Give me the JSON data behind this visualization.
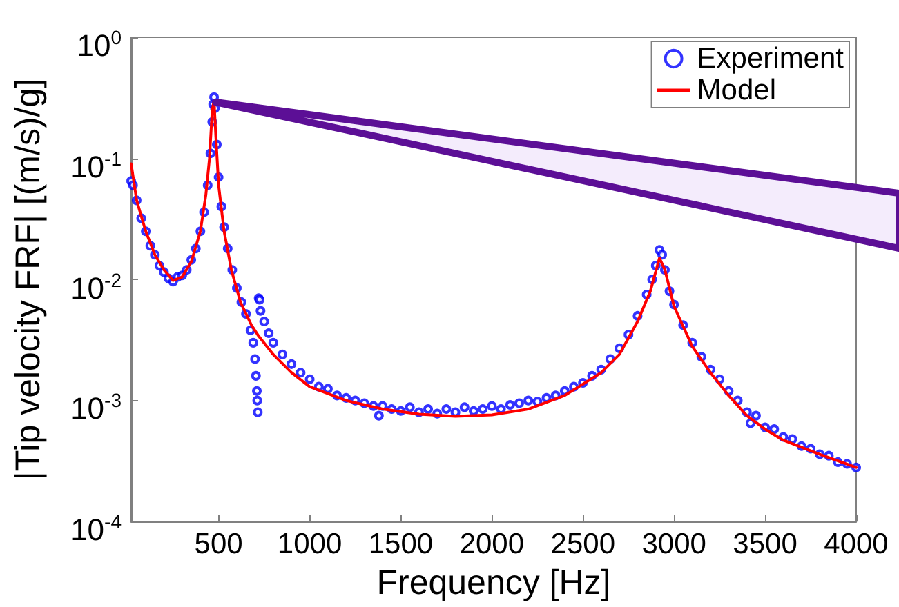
{
  "chart_data": {
    "type": "scatter",
    "xlabel": "Frequency [Hz]",
    "ylabel": "|Tip velocity FRF| [(m/s)/g]",
    "log": "y",
    "grid": false,
    "legend": "top right",
    "xlim": [
      20,
      4000
    ],
    "xticks": [
      500,
      1000,
      1500,
      2000,
      2500,
      3000,
      3500,
      4000
    ],
    "ylim": [
      0.0001,
      1
    ],
    "yticks": [
      {
        "value": 0.0001,
        "label": "10$^{-4}$"
      },
      {
        "value": 0.001,
        "label": "10$^{-3}$"
      },
      {
        "value": 0.01,
        "label": "10$^{-2}$"
      },
      {
        "value": 0.1,
        "label": "10$^{-1}$"
      },
      {
        "value": 1,
        "label": "10$^{0}$"
      }
    ],
    "series": [
      {
        "name": "Experiment",
        "type": "scatter",
        "marker": "circle",
        "color": "#0000ff",
        "x": [
          20,
          30,
          50,
          75,
          100,
          125,
          150,
          175,
          200,
          225,
          250,
          275,
          300,
          325,
          350,
          375,
          400,
          420,
          440,
          455,
          465,
          470,
          475,
          480,
          490,
          500,
          515,
          530,
          550,
          575,
          600,
          625,
          650,
          675,
          690,
          700,
          705,
          710,
          712,
          715,
          720,
          725,
          730,
          750,
          775,
          800,
          850,
          900,
          950,
          1000,
          1050,
          1100,
          1150,
          1200,
          1250,
          1300,
          1350,
          1380,
          1400,
          1450,
          1500,
          1550,
          1600,
          1650,
          1700,
          1750,
          1800,
          1850,
          1900,
          1950,
          2000,
          2050,
          2100,
          2150,
          2200,
          2250,
          2300,
          2350,
          2400,
          2450,
          2500,
          2550,
          2600,
          2650,
          2700,
          2750,
          2800,
          2850,
          2880,
          2900,
          2920,
          2935,
          2950,
          2975,
          3000,
          3050,
          3100,
          3150,
          3200,
          3250,
          3300,
          3350,
          3400,
          3420,
          3450,
          3500,
          3550,
          3600,
          3650,
          3700,
          3750,
          3800,
          3850,
          3900,
          3950,
          4000
        ],
        "values": [
          0.065,
          0.06,
          0.045,
          0.032,
          0.025,
          0.019,
          0.016,
          0.013,
          0.0115,
          0.0102,
          0.0096,
          0.0105,
          0.0108,
          0.012,
          0.0145,
          0.018,
          0.025,
          0.036,
          0.06,
          0.11,
          0.2,
          0.28,
          0.32,
          0.26,
          0.13,
          0.07,
          0.04,
          0.027,
          0.018,
          0.012,
          0.0085,
          0.0065,
          0.0052,
          0.0038,
          0.003,
          0.0022,
          0.0016,
          0.0012,
          0.001,
          0.0008,
          0.007,
          0.0068,
          0.0055,
          0.0045,
          0.0036,
          0.003,
          0.0024,
          0.002,
          0.0017,
          0.0015,
          0.0013,
          0.00125,
          0.0011,
          0.00105,
          0.001,
          0.00095,
          0.0009,
          0.00075,
          0.0009,
          0.00085,
          0.00082,
          0.00088,
          0.0008,
          0.00085,
          0.00078,
          0.00085,
          0.0008,
          0.00088,
          0.00082,
          0.00085,
          0.0009,
          0.00085,
          0.00092,
          0.00095,
          0.001,
          0.00098,
          0.00105,
          0.0011,
          0.0012,
          0.0013,
          0.0014,
          0.0016,
          0.0018,
          0.0022,
          0.0027,
          0.0035,
          0.005,
          0.0075,
          0.01,
          0.013,
          0.0175,
          0.016,
          0.012,
          0.008,
          0.0062,
          0.0042,
          0.003,
          0.0023,
          0.0018,
          0.0015,
          0.0012,
          0.001,
          0.0008,
          0.00065,
          0.00075,
          0.0006,
          0.00058,
          0.0005,
          0.00048,
          0.00042,
          0.0004,
          0.00036,
          0.00035,
          0.00031,
          0.0003,
          0.00028
        ]
      },
      {
        "name": "Model",
        "type": "line",
        "marker": "none",
        "color": "#ff0000",
        "x": [
          20,
          50,
          100,
          150,
          200,
          250,
          300,
          350,
          400,
          430,
          450,
          465,
          475,
          485,
          500,
          530,
          570,
          620,
          680,
          720,
          800,
          900,
          1000,
          1200,
          1400,
          1600,
          1800,
          2000,
          2200,
          2400,
          2600,
          2700,
          2800,
          2870,
          2920,
          2950,
          3000,
          3100,
          3200,
          3300,
          3400,
          3500,
          3600,
          3800,
          4000
        ],
        "values": [
          0.09,
          0.045,
          0.025,
          0.016,
          0.012,
          0.0098,
          0.0105,
          0.014,
          0.025,
          0.05,
          0.1,
          0.25,
          0.3,
          0.15,
          0.06,
          0.025,
          0.012,
          0.0065,
          0.0042,
          0.0034,
          0.0024,
          0.0017,
          0.0013,
          0.001,
          0.00085,
          0.00077,
          0.00074,
          0.00076,
          0.00085,
          0.0011,
          0.0017,
          0.0024,
          0.0045,
          0.008,
          0.015,
          0.012,
          0.006,
          0.0028,
          0.0017,
          0.0011,
          0.00075,
          0.00058,
          0.00047,
          0.00036,
          0.00028
        ]
      }
    ]
  }
}
